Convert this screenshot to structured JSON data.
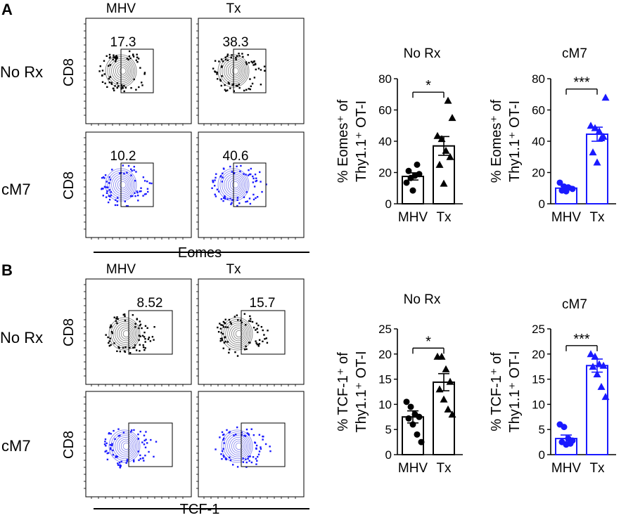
{
  "panels": [
    {
      "letter": "A",
      "col_labels": [
        "MHV",
        "Tx"
      ],
      "row_labels": [
        "No Rx",
        "cM7"
      ],
      "cytometry": {
        "y_axis_label": "CD8",
        "x_axis_label": "Eomes",
        "gate_values": [
          [
            "17.3",
            "38.3"
          ],
          [
            "10.2",
            "40.6"
          ]
        ]
      }
    },
    {
      "letter": "B",
      "col_labels": [
        "MHV",
        "Tx"
      ],
      "row_labels": [
        "No Rx",
        "cM7"
      ],
      "cytometry": {
        "y_axis_label": "CD8",
        "x_axis_label": "TCF-1",
        "gate_values": [
          [
            "8.52",
            "15.7"
          ],
          [
            "",
            ""
          ]
        ]
      }
    }
  ],
  "chart_data": [
    {
      "type": "bar",
      "title": "No Rx",
      "ylabel_lines": [
        "% Eomes⁺ of",
        "Thy1.1⁺ OT-I"
      ],
      "categories": [
        "MHV",
        "Tx"
      ],
      "values": [
        17.5,
        37
      ],
      "errors": [
        2.3,
        6
      ],
      "ylim": [
        0,
        80
      ],
      "yticks": [
        0,
        20,
        40,
        60,
        80
      ],
      "color": "#000000",
      "points": [
        [
          13.5,
          16.5,
          18,
          19,
          21,
          8.5,
          25
        ],
        [
          43.5,
          41.5,
          34,
          30,
          25,
          13,
          66,
          55
        ]
      ],
      "markers": [
        "circle",
        "triangle"
      ],
      "significance": "*"
    },
    {
      "type": "bar",
      "title": "cM7",
      "ylabel_lines": [
        "% Eomes⁺ of",
        "Thy1.1⁺ OT-I"
      ],
      "categories": [
        "MHV",
        "Tx"
      ],
      "values": [
        10,
        44.5
      ],
      "errors": [
        1.2,
        4.5
      ],
      "ylim": [
        0,
        80
      ],
      "yticks": [
        0,
        20,
        40,
        60,
        80
      ],
      "color": "#1a1aff",
      "points": [
        [
          13.5,
          11,
          10.5,
          9.5,
          8.5,
          8
        ],
        [
          50,
          48.5,
          46.5,
          43,
          33,
          26.5,
          42,
          68
        ]
      ],
      "markers": [
        "circle",
        "triangle"
      ],
      "significance": "***"
    },
    {
      "type": "bar",
      "title": "No Rx",
      "ylabel_lines": [
        "% TCF-1⁺ of",
        "Thy1.1⁺ OT-I"
      ],
      "categories": [
        "MHV",
        "Tx"
      ],
      "values": [
        7.5,
        14.4
      ],
      "errors": [
        1.2,
        1.7
      ],
      "ylim": [
        0,
        25
      ],
      "yticks": [
        0,
        5,
        10,
        15,
        20,
        25
      ],
      "color": "#000000",
      "points": [
        [
          10.5,
          9.5,
          8,
          7.5,
          7.2,
          6,
          4,
          2.5
        ],
        [
          19.5,
          19.5,
          17,
          14.5,
          13,
          11,
          9,
          8
        ]
      ],
      "markers": [
        "circle",
        "triangle"
      ],
      "significance": "*"
    },
    {
      "type": "bar",
      "title": "cM7",
      "ylabel_lines": [
        "% TCF-1⁺ of",
        "Thy1.1⁺ OT-I"
      ],
      "categories": [
        "MHV",
        "Tx"
      ],
      "values": [
        3.2,
        17.7
      ],
      "errors": [
        0.7,
        1.3
      ],
      "ylim": [
        0,
        25
      ],
      "yticks": [
        0,
        5,
        10,
        15,
        20,
        25
      ],
      "color": "#1a1aff",
      "points": [
        [
          6,
          5.5,
          3.2,
          2.8,
          2.5,
          2,
          2.2
        ],
        [
          20,
          19.5,
          18,
          17.7,
          17.5,
          16,
          13.5,
          11.5
        ]
      ],
      "markers": [
        "circle",
        "triangle"
      ],
      "significance": "***"
    }
  ],
  "colors": {
    "no_rx_contour": "#000000",
    "cm7_contour": "#1a1aff",
    "contour_gray": "#8a8a8a",
    "cm7_contour_fill": "#8f8ff0"
  }
}
